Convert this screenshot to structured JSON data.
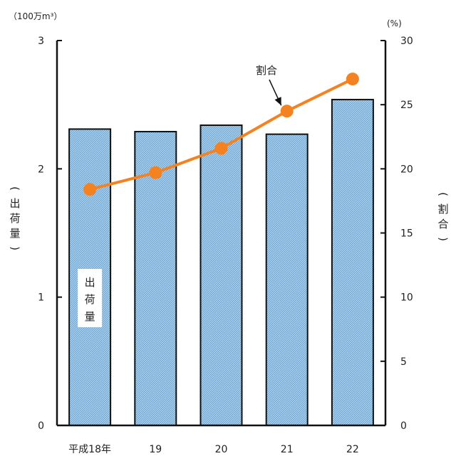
{
  "chart_data": {
    "type": "bar",
    "categories": [
      "平成18年",
      "19",
      "20",
      "21",
      "22"
    ],
    "series": [
      {
        "name": "出荷量",
        "chart": "bar",
        "axis": "left",
        "values": [
          2.31,
          2.29,
          2.34,
          2.27,
          2.54
        ],
        "color": "#a9d4ef"
      },
      {
        "name": "割合",
        "chart": "line",
        "axis": "right",
        "values": [
          18.4,
          19.7,
          21.6,
          24.5,
          27.0
        ],
        "color": "#f58220"
      }
    ],
    "y_left": {
      "unit": "（100万m³）",
      "label": [
        "(",
        "出",
        "荷",
        "量",
        ")"
      ],
      "ticks": [
        "0",
        "1",
        "2",
        "3"
      ],
      "ylim": [
        0,
        3
      ]
    },
    "y_right": {
      "unit": "(%)",
      "label": [
        "(",
        "割",
        "合",
        ")"
      ],
      "ticks": [
        "0",
        "5",
        "10",
        "15",
        "20",
        "25",
        "30"
      ],
      "ylim": [
        0,
        30
      ]
    },
    "annotations": {
      "bar_label": [
        "出",
        "荷",
        "量"
      ],
      "line_label": "割合"
    },
    "grid": false,
    "legend": "none"
  }
}
